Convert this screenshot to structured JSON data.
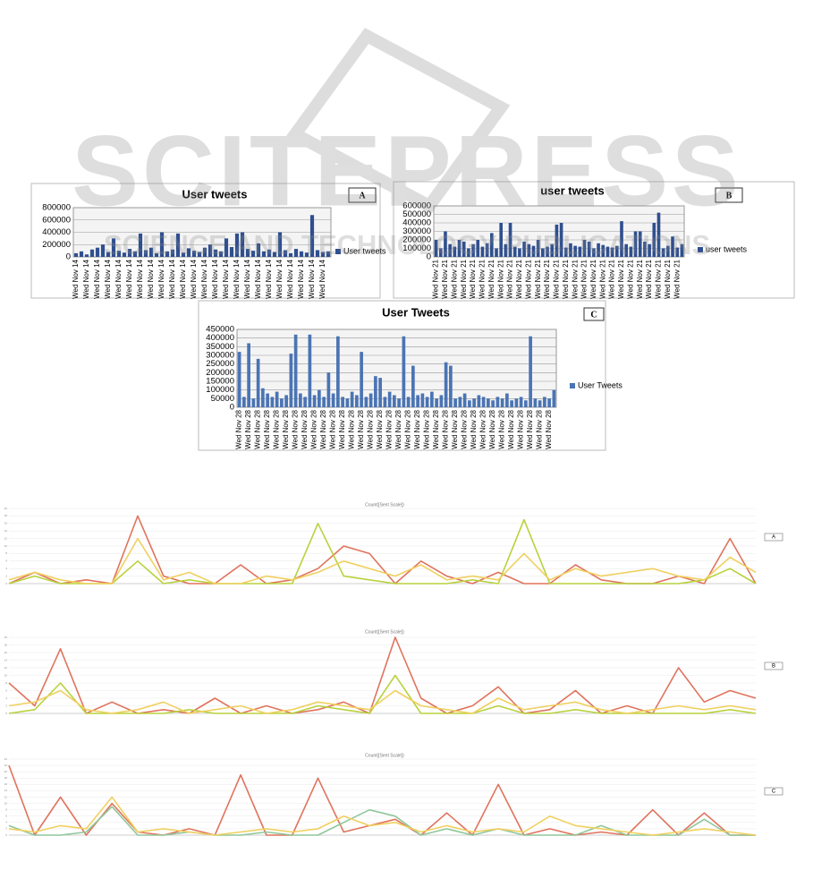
{
  "watermark": {
    "title": "SCITEPRESS",
    "subtitle": "SCIENCE AND TECHNOLOGY PUBLICATIONS"
  },
  "chart_data": [
    {
      "type": "bar",
      "title": "User tweets",
      "label": "A",
      "legend": "right",
      "grid": true,
      "ylim": [
        0,
        800000
      ],
      "yticks": [
        0,
        200000,
        400000,
        600000,
        800000
      ],
      "categories": [
        "Wed Nov 14",
        null,
        "Wed Nov 14",
        null,
        "Wed Nov 14",
        null,
        "Wed Nov 14",
        null,
        "Wed Nov 14",
        null,
        "Wed Nov 14",
        null,
        "Wed Nov 14",
        null,
        "Wed Nov 14",
        null,
        "Wed Nov 14",
        null,
        "Wed Nov 14",
        null,
        "Wed Nov 14",
        null,
        "Wed Nov 14",
        null,
        "Wed Nov 14",
        null,
        "Wed Nov 14",
        null,
        "Wed Nov 14",
        null,
        "Wed Nov 14",
        null,
        "Wed Nov 14",
        null,
        "Wed Nov 14",
        null,
        "Wed Nov 14",
        null,
        "Wed Nov 14",
        null,
        "Wed Nov 14",
        null,
        "Wed Nov 14",
        null,
        "Wed Nov 14",
        null,
        "Wed Nov 14",
        null
      ],
      "series": [
        {
          "name": "User tweets",
          "color": "#2f4f8f",
          "values": [
            60000,
            90000,
            40000,
            120000,
            150000,
            200000,
            80000,
            300000,
            100000,
            70000,
            130000,
            90000,
            380000,
            110000,
            150000,
            60000,
            400000,
            90000,
            120000,
            380000,
            70000,
            140000,
            100000,
            80000,
            150000,
            200000,
            120000,
            90000,
            300000,
            160000,
            380000,
            400000,
            130000,
            100000,
            220000,
            90000,
            120000,
            80000,
            400000,
            110000,
            60000,
            130000,
            90000,
            70000,
            680000,
            110000,
            80000,
            90000
          ]
        }
      ]
    },
    {
      "type": "bar",
      "title": "user tweets",
      "label": "B",
      "legend": "right",
      "grid": true,
      "ylim": [
        0,
        600000
      ],
      "yticks": [
        0,
        100000,
        200000,
        300000,
        400000,
        500000,
        600000
      ],
      "categories": [
        "Wed Nov 21",
        null,
        "Wed Nov 21",
        null,
        "Wed Nov 21",
        null,
        "Wed Nov 21",
        null,
        "Wed Nov 21",
        null,
        "Wed Nov 21",
        null,
        "Wed Nov 21",
        null,
        "Wed Nov 21",
        null,
        "Wed Nov 21",
        null,
        "Wed Nov 21",
        null,
        "Wed Nov 21",
        null,
        "Wed Nov 21",
        null,
        "Wed Nov 21",
        null,
        "Wed Nov 21",
        null,
        "Wed Nov 21",
        null,
        "Wed Nov 21",
        null,
        "Wed Nov 21",
        null,
        "Wed Nov 21",
        null,
        "Wed Nov 21",
        null,
        "Wed Nov 21",
        null,
        "Wed Nov 21",
        null,
        "Wed Nov 21",
        null,
        "Wed Nov 21",
        null,
        "Wed Nov 21",
        null,
        "Wed Nov 21",
        null,
        "Wed Nov 21",
        null,
        "Wed Nov 21",
        null
      ],
      "series": [
        {
          "name": "user tweets",
          "color": "#2f4f8f",
          "values": [
            200000,
            100000,
            300000,
            150000,
            120000,
            200000,
            180000,
            100000,
            150000,
            200000,
            120000,
            160000,
            280000,
            100000,
            400000,
            150000,
            400000,
            120000,
            100000,
            180000,
            150000,
            130000,
            200000,
            100000,
            120000,
            150000,
            380000,
            400000,
            110000,
            160000,
            130000,
            120000,
            200000,
            180000,
            100000,
            160000,
            140000,
            120000,
            110000,
            130000,
            420000,
            150000,
            120000,
            300000,
            300000,
            180000,
            150000,
            400000,
            520000,
            100000,
            130000,
            240000,
            110000,
            150000
          ]
        }
      ]
    },
    {
      "type": "bar",
      "title": "User Tweets",
      "label": "C",
      "legend": "right",
      "grid": true,
      "ylim": [
        0,
        450000
      ],
      "yticks": [
        0,
        50000,
        100000,
        150000,
        200000,
        250000,
        300000,
        350000,
        400000,
        450000
      ],
      "categories": [
        "Wed Nov 28",
        null,
        "Wed Nov 28",
        null,
        "Wed Nov 28",
        null,
        "Wed Nov 28",
        null,
        "Wed Nov 28",
        null,
        "Wed Nov 28",
        null,
        "Wed Nov 28",
        null,
        "Wed Nov 28",
        null,
        "Wed Nov 28",
        null,
        "Wed Nov 28",
        null,
        "Wed Nov 28",
        null,
        "Wed Nov 28",
        null,
        "Wed Nov 28",
        null,
        "Wed Nov 28",
        null,
        "Wed Nov 28",
        null,
        "Wed Nov 28",
        null,
        "Wed Nov 28",
        null,
        "Wed Nov 28",
        null,
        "Wed Nov 28",
        null,
        "Wed Nov 28",
        null,
        "Wed Nov 28",
        null,
        "Wed Nov 28",
        null,
        "Wed Nov 28",
        null,
        "Wed Nov 28",
        null,
        "Wed Nov 28",
        null,
        "Wed Nov 28",
        null,
        "Wed Nov 28",
        null,
        "Wed Nov 28",
        null,
        "Wed Nov 28",
        null,
        "Wed Nov 28",
        null,
        "Wed Nov 28",
        null,
        "Wed Nov 28",
        null,
        "Wed Nov 28",
        null,
        "Wed Nov 28",
        null
      ],
      "series": [
        {
          "name": "User Tweets",
          "color": "#4a74b4",
          "values": [
            320000,
            60000,
            370000,
            50000,
            280000,
            110000,
            80000,
            60000,
            90000,
            50000,
            70000,
            310000,
            420000,
            80000,
            60000,
            420000,
            70000,
            100000,
            60000,
            200000,
            80000,
            410000,
            60000,
            50000,
            90000,
            70000,
            320000,
            60000,
            80000,
            180000,
            170000,
            60000,
            90000,
            70000,
            50000,
            410000,
            60000,
            240000,
            70000,
            80000,
            60000,
            90000,
            50000,
            70000,
            260000,
            240000,
            50000,
            60000,
            80000,
            40000,
            50000,
            70000,
            60000,
            50000,
            40000,
            60000,
            50000,
            80000,
            40000,
            50000,
            60000,
            40000,
            410000,
            50000,
            40000,
            60000,
            50000,
            100000
          ]
        }
      ]
    },
    {
      "type": "line",
      "title": "Count([Sent Scale])",
      "label": "A",
      "grid": true,
      "ylim": [
        0,
        20
      ],
      "yticks": [
        0,
        2,
        4,
        6,
        8,
        10,
        12,
        14,
        16,
        18,
        20
      ],
      "series": [
        {
          "color": "#e0735c",
          "values": [
            0,
            3,
            0,
            1,
            0,
            18,
            2,
            0,
            0,
            5,
            0,
            1,
            4,
            10,
            8,
            0,
            6,
            2,
            0,
            3,
            0,
            0,
            5,
            1,
            0,
            0,
            2,
            0,
            12,
            0
          ]
        },
        {
          "color": "#b8d23c",
          "values": [
            0,
            2,
            0,
            0,
            0,
            6,
            0,
            1,
            0,
            0,
            0,
            0,
            16,
            2,
            1,
            0,
            0,
            0,
            1,
            0,
            17,
            0,
            0,
            0,
            0,
            0,
            0,
            1,
            4,
            0
          ]
        },
        {
          "color": "#f0d060",
          "values": [
            1,
            3,
            1,
            0,
            0,
            12,
            1,
            3,
            0,
            0,
            2,
            1,
            3,
            6,
            4,
            2,
            5,
            1,
            2,
            1,
            8,
            1,
            4,
            2,
            3,
            4,
            2,
            1,
            7,
            3
          ]
        }
      ]
    },
    {
      "type": "line",
      "title": "Count([Sent Scale])",
      "label": "B",
      "grid": true,
      "ylim": [
        0,
        20
      ],
      "yticks": [
        0,
        2,
        4,
        6,
        8,
        10,
        12,
        14,
        16,
        18,
        20
      ],
      "series": [
        {
          "color": "#e0735c",
          "values": [
            8,
            2,
            17,
            0,
            3,
            0,
            1,
            0,
            4,
            0,
            2,
            0,
            1,
            3,
            0,
            20,
            4,
            0,
            2,
            7,
            0,
            1,
            6,
            0,
            2,
            0,
            12,
            3,
            6,
            4
          ]
        },
        {
          "color": "#b8d23c",
          "values": [
            0,
            1,
            8,
            0,
            0,
            0,
            0,
            1,
            0,
            0,
            0,
            0,
            2,
            1,
            0,
            10,
            0,
            0,
            0,
            2,
            0,
            0,
            1,
            0,
            0,
            0,
            0,
            0,
            1,
            0
          ]
        },
        {
          "color": "#f0d060",
          "values": [
            2,
            3,
            6,
            1,
            0,
            1,
            3,
            0,
            1,
            2,
            0,
            1,
            3,
            2,
            1,
            6,
            2,
            1,
            0,
            4,
            1,
            2,
            3,
            1,
            0,
            1,
            2,
            1,
            2,
            1
          ]
        }
      ]
    },
    {
      "type": "line",
      "title": "Count([Sent Scale])",
      "label": "C",
      "grid": true,
      "ylim": [
        0,
        24
      ],
      "yticks": [
        0,
        2,
        4,
        6,
        8,
        10,
        12,
        14,
        16,
        18,
        20,
        22,
        24
      ],
      "series": [
        {
          "color": "#e0735c",
          "values": [
            22,
            0,
            12,
            0,
            10,
            1,
            0,
            2,
            0,
            19,
            0,
            0,
            18,
            1,
            3,
            5,
            0,
            7,
            0,
            16,
            0,
            2,
            0,
            1,
            0,
            8,
            0,
            7,
            0,
            0
          ]
        },
        {
          "color": "#8fc79a",
          "values": [
            3,
            0,
            0,
            1,
            9,
            0,
            0,
            1,
            0,
            0,
            1,
            0,
            0,
            4,
            8,
            6,
            0,
            2,
            0,
            2,
            0,
            0,
            0,
            3,
            0,
            0,
            0,
            5,
            0,
            0
          ]
        },
        {
          "color": "#f0d060",
          "values": [
            2,
            1,
            3,
            2,
            12,
            1,
            2,
            1,
            0,
            1,
            2,
            1,
            2,
            6,
            3,
            4,
            1,
            3,
            1,
            2,
            1,
            6,
            3,
            2,
            1,
            0,
            1,
            2,
            1,
            0
          ]
        }
      ]
    }
  ]
}
